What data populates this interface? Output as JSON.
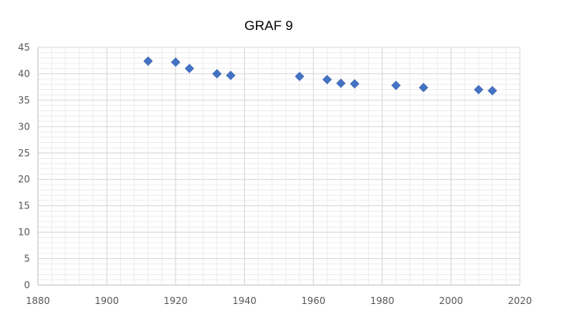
{
  "chart_data": {
    "type": "scatter",
    "title": "GRAF 9",
    "xlabel": "",
    "ylabel": "",
    "xlim": [
      1880,
      2020
    ],
    "ylim": [
      0,
      45
    ],
    "xticks": [
      1880,
      1900,
      1920,
      1940,
      1960,
      1980,
      2000,
      2020
    ],
    "yticks": [
      0,
      5,
      10,
      15,
      20,
      25,
      30,
      35,
      40,
      45
    ],
    "grid": true,
    "legend": "none",
    "marker": "diamond",
    "marker_color": "#4472C4",
    "major_grid_color": "#D9D9D9",
    "minor_grid_color": "#EDEDED",
    "series": [
      {
        "x": [
          1912,
          1920,
          1924,
          1932,
          1936,
          1956,
          1964,
          1968,
          1972,
          1984,
          1992,
          2008,
          2012
        ],
        "y": [
          42.4,
          42.2,
          41.0,
          40.0,
          39.7,
          39.5,
          38.9,
          38.2,
          38.1,
          37.8,
          37.4,
          37.0,
          36.8
        ]
      }
    ]
  }
}
